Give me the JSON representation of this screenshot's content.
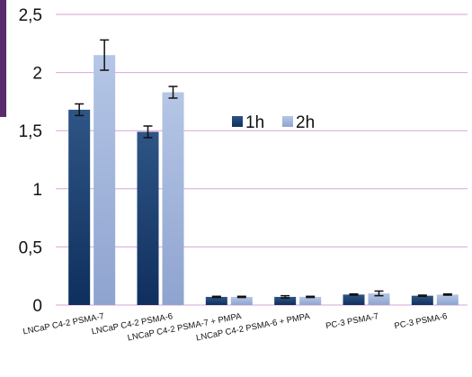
{
  "chart_data": {
    "type": "bar",
    "title": "",
    "xlabel": "",
    "ylabel": "",
    "ylim": [
      0,
      2.5
    ],
    "yticks": [
      "0",
      "0,5",
      "1",
      "1,5",
      "2",
      "2,5"
    ],
    "ytick_values": [
      0,
      0.5,
      1,
      1.5,
      2,
      2.5
    ],
    "grid": true,
    "legend_position": "center-right",
    "categories": [
      "LNCaP C4-2 PSMA-7",
      "LNCaP C4-2 PSMA-6",
      "LNCaP C4-2 PSMA-7 + PMPA",
      "LNCaP C4-2 PSMA-6 + PMPA",
      "PC-3 PSMA-7",
      "PC-3 PSMA-6"
    ],
    "series": [
      {
        "name": "1h",
        "values": [
          1.68,
          1.49,
          0.07,
          0.07,
          0.09,
          0.08
        ],
        "errors": [
          0.05,
          0.05,
          0.005,
          0.01,
          0.005,
          0.005
        ]
      },
      {
        "name": "2h",
        "values": [
          2.15,
          1.83,
          0.07,
          0.07,
          0.1,
          0.09
        ],
        "errors": [
          0.13,
          0.05,
          0.005,
          0.005,
          0.02,
          0.005
        ]
      }
    ],
    "colors": {
      "series1_top": "#2e5585",
      "series1_bottom": "#0f2f5e",
      "series2_top": "#b5c6e6",
      "series2_bottom": "#8ea3cf",
      "grid": "#d6a6d6",
      "axis_text": "#111111",
      "accent": "#5a2a6e"
    }
  }
}
